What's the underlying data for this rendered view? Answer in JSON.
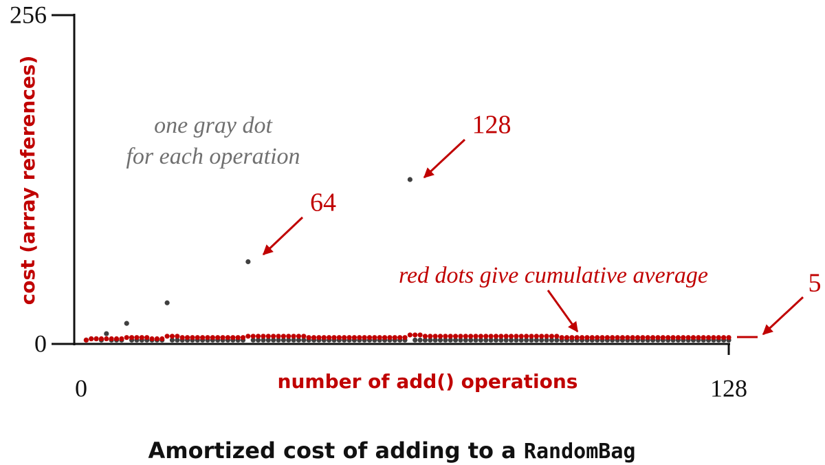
{
  "chart_data": {
    "type": "scatter",
    "title": "Amortized cost of adding to a",
    "title_code": "RandomBag",
    "x_label": "number of add() operations",
    "y_label": "cost (array references)",
    "annotations": [
      "one gray dot",
      "for each operation",
      "128",
      "64",
      "red dots give cumulative average",
      "5"
    ],
    "xlim": [
      0,
      128
    ],
    "xticks": [
      0,
      128
    ],
    "ylim": [
      0,
      256
    ],
    "yticks": [
      0,
      256
    ],
    "grid": false,
    "x": [
      1,
      2,
      3,
      4,
      5,
      6,
      7,
      8,
      9,
      10,
      11,
      12,
      13,
      14,
      15,
      16,
      17,
      18,
      19,
      20,
      21,
      22,
      23,
      24,
      25,
      26,
      27,
      28,
      29,
      30,
      31,
      32,
      33,
      34,
      35,
      36,
      37,
      38,
      39,
      40,
      41,
      42,
      43,
      44,
      45,
      46,
      47,
      48,
      49,
      50,
      51,
      52,
      53,
      54,
      55,
      56,
      57,
      58,
      59,
      60,
      61,
      62,
      63,
      64,
      65,
      66,
      67,
      68,
      69,
      70,
      71,
      72,
      73,
      74,
      75,
      76,
      77,
      78,
      79,
      80,
      81,
      82,
      83,
      84,
      85,
      86,
      87,
      88,
      89,
      90,
      91,
      92,
      93,
      94,
      95,
      96,
      97,
      98,
      99,
      100,
      101,
      102,
      103,
      104,
      105,
      106,
      107,
      108,
      109,
      110,
      111,
      112,
      113,
      114,
      115,
      116,
      117,
      118,
      119,
      120,
      121,
      122,
      123,
      124,
      125,
      126,
      127,
      128
    ],
    "series": [
      {
        "color": "#404040",
        "values": [
          3,
          4,
          4,
          3,
          8,
          3,
          3,
          3,
          16,
          3,
          3,
          3,
          3,
          3,
          3,
          3,
          32,
          3,
          3,
          3,
          3,
          3,
          3,
          3,
          3,
          3,
          3,
          3,
          3,
          3,
          3,
          3,
          64,
          3,
          3,
          3,
          3,
          3,
          3,
          3,
          3,
          3,
          3,
          3,
          3,
          3,
          3,
          3,
          3,
          3,
          3,
          3,
          3,
          3,
          3,
          3,
          3,
          3,
          3,
          3,
          3,
          3,
          3,
          3,
          128,
          3,
          3,
          3,
          3,
          3,
          3,
          3,
          3,
          3,
          3,
          3,
          3,
          3,
          3,
          3,
          3,
          3,
          3,
          3,
          3,
          3,
          3,
          3,
          3,
          3,
          3,
          3,
          3,
          3,
          3,
          3,
          3,
          3,
          3,
          3,
          3,
          3,
          3,
          3,
          3,
          3,
          3,
          3,
          3,
          3,
          3,
          3,
          3,
          3,
          3,
          3,
          3,
          3,
          3,
          3,
          3,
          3,
          3,
          3,
          3,
          3,
          3,
          3
        ]
      },
      {
        "color": "#c00000",
        "values": [
          3,
          4,
          4,
          4,
          4,
          4,
          4,
          4,
          5,
          5,
          5,
          5,
          5,
          4,
          4,
          4,
          6,
          6,
          6,
          5,
          5,
          5,
          5,
          5,
          5,
          5,
          5,
          5,
          5,
          5,
          5,
          5,
          6,
          6,
          6,
          6,
          6,
          6,
          6,
          6,
          6,
          6,
          6,
          6,
          5,
          5,
          5,
          5,
          5,
          5,
          5,
          5,
          5,
          5,
          5,
          5,
          5,
          5,
          5,
          5,
          5,
          5,
          5,
          5,
          7,
          7,
          7,
          6,
          6,
          6,
          6,
          6,
          6,
          6,
          6,
          6,
          6,
          6,
          6,
          6,
          6,
          6,
          6,
          6,
          6,
          6,
          6,
          6,
          6,
          6,
          6,
          6,
          6,
          6,
          5,
          5,
          5,
          5,
          5,
          5,
          5,
          5,
          5,
          5,
          5,
          5,
          5,
          5,
          5,
          5,
          5,
          5,
          5,
          5,
          5,
          5,
          5,
          5,
          5,
          5,
          5,
          5,
          5,
          5,
          5,
          5,
          5,
          5
        ]
      }
    ]
  }
}
